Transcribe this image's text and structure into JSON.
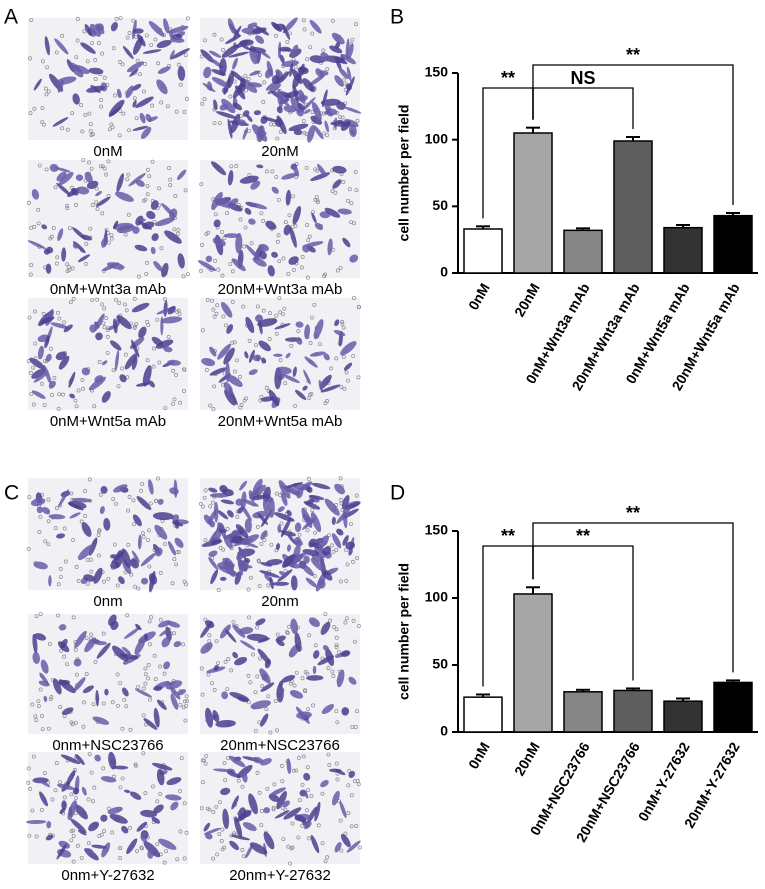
{
  "image_panels": [
    {
      "label": "A",
      "captions": [
        "0nM",
        "20nM",
        "0nM+Wnt3a mAb",
        "20nM+Wnt3a mAb",
        "0nM+Wnt5a mAb",
        "20nM+Wnt5a mAb"
      ]
    },
    {
      "label": "C",
      "captions": [
        "0nm",
        "20nm",
        "0nm+NSC23766",
        "20nm+NSC23766",
        "0nm+Y-27632",
        "20nm+Y-27632"
      ]
    }
  ],
  "chart_data": [
    {
      "type": "bar",
      "label": "B",
      "y_label": "cell number per field",
      "categories": [
        "0nM",
        "20nM",
        "0nM+Wnt3a mAb",
        "20nM+Wnt3a mAb",
        "0nM+Wnt5a mAb",
        "20nM+Wnt5a mAb"
      ],
      "values": [
        33,
        105,
        32,
        99,
        34,
        43
      ],
      "errors": [
        2,
        4,
        1.5,
        3,
        2,
        2
      ],
      "colors": [
        "#ffffff",
        "#a6a6a6",
        "#858585",
        "#5e5e5e",
        "#333333",
        "#000000"
      ],
      "ylim": [
        0,
        150
      ],
      "yticks": [
        0,
        50,
        100,
        150
      ],
      "annotations": [
        "**",
        "NS",
        "**"
      ]
    },
    {
      "type": "bar",
      "label": "D",
      "y_label": "cell number per field",
      "categories": [
        "0nM",
        "20nM",
        "0nM+NSC23766",
        "20nM+NSC23766",
        "0nM+Y-27632",
        "20nM+Y-27632"
      ],
      "values": [
        26,
        103,
        30,
        31,
        23,
        37
      ],
      "errors": [
        2,
        5,
        1.5,
        1.5,
        2,
        1.5
      ],
      "colors": [
        "#ffffff",
        "#a6a6a6",
        "#858585",
        "#5e5e5e",
        "#333333",
        "#000000"
      ],
      "ylim": [
        0,
        150
      ],
      "yticks": [
        0,
        50,
        100,
        150
      ],
      "annotations": [
        "**",
        "**",
        "**"
      ]
    }
  ]
}
